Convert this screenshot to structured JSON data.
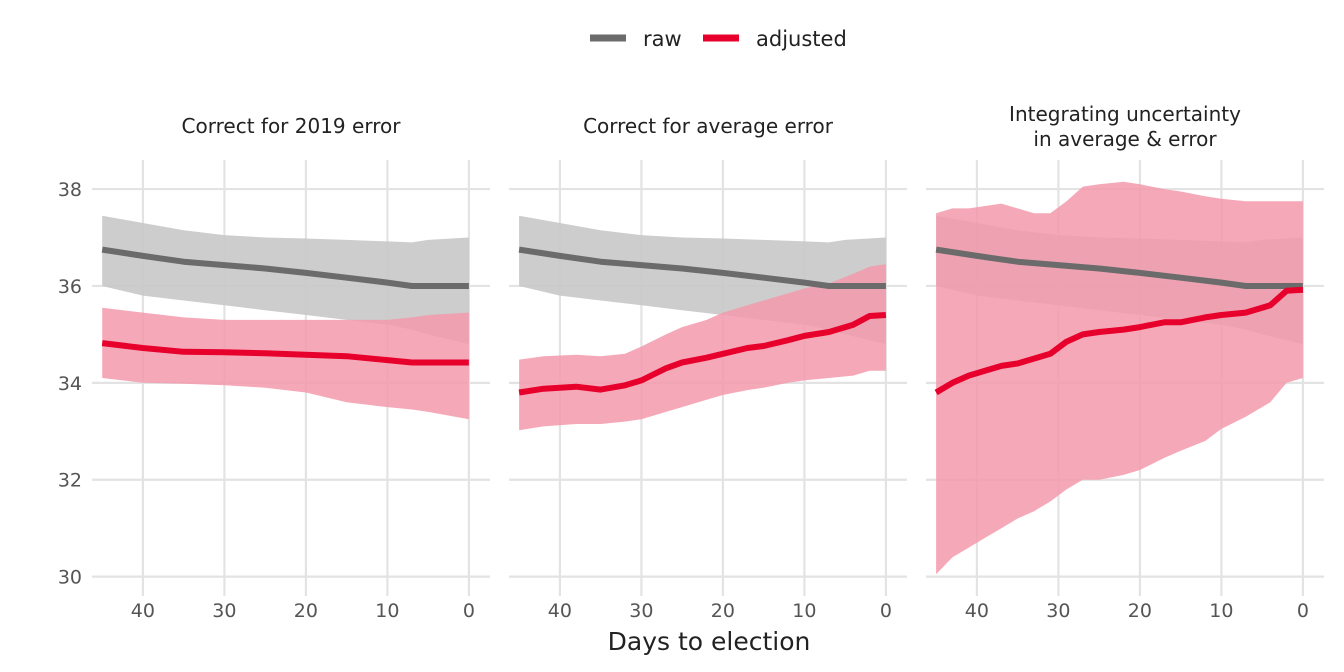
{
  "chart_data": {
    "type": "line",
    "xlabel": "Days to election",
    "ylabel": "",
    "xlim": [
      46,
      0
    ],
    "ylim": [
      29.6,
      38.6
    ],
    "x_reversed": true,
    "x_ticks": [
      40,
      30,
      20,
      10,
      0
    ],
    "y_ticks": [
      30,
      32,
      34,
      36,
      38
    ],
    "grid": true,
    "legend_position": "top-center",
    "colors": {
      "raw": "#6b6b6b",
      "adjusted": "#e8002d",
      "raw_band": "#c8c8c8",
      "adjusted_band": "#f39aac"
    },
    "legend": [
      {
        "key": "raw",
        "label": "raw"
      },
      {
        "key": "adjusted",
        "label": "adjusted"
      }
    ],
    "panels": [
      {
        "title": [
          "Correct for 2019 error"
        ],
        "series": [
          {
            "name": "raw",
            "x": [
              45,
              40,
              35,
              30,
              25,
              20,
              15,
              10,
              7,
              5,
              0
            ],
            "y": [
              36.75,
              36.62,
              36.5,
              36.43,
              36.36,
              36.27,
              36.17,
              36.07,
              36.0,
              36.0,
              36.0
            ],
            "lower": [
              36.0,
              35.8,
              35.7,
              35.6,
              35.5,
              35.4,
              35.3,
              35.2,
              35.1,
              35.0,
              34.8
            ],
            "upper": [
              37.45,
              37.3,
              37.15,
              37.05,
              37.0,
              36.98,
              36.95,
              36.92,
              36.9,
              36.95,
              37.0
            ]
          },
          {
            "name": "adjusted",
            "x": [
              45,
              40,
              35,
              30,
              25,
              20,
              15,
              10,
              7,
              5,
              0
            ],
            "y": [
              34.82,
              34.72,
              34.64,
              34.63,
              34.61,
              34.58,
              34.55,
              34.47,
              34.42,
              34.42,
              34.42
            ],
            "lower": [
              34.1,
              34.0,
              33.98,
              33.95,
              33.9,
              33.8,
              33.6,
              33.5,
              33.45,
              33.4,
              33.25
            ],
            "upper": [
              35.55,
              35.45,
              35.35,
              35.3,
              35.3,
              35.3,
              35.3,
              35.3,
              35.35,
              35.4,
              35.45
            ]
          }
        ]
      },
      {
        "title": [
          "Correct for average error"
        ],
        "series": [
          {
            "name": "raw",
            "x": [
              45,
              40,
              35,
              30,
              25,
              20,
              15,
              10,
              7,
              5,
              0
            ],
            "y": [
              36.75,
              36.62,
              36.5,
              36.43,
              36.36,
              36.27,
              36.17,
              36.07,
              36.0,
              36.0,
              36.0
            ],
            "lower": [
              36.0,
              35.8,
              35.7,
              35.6,
              35.5,
              35.4,
              35.3,
              35.2,
              35.1,
              35.0,
              34.8
            ],
            "upper": [
              37.45,
              37.3,
              37.15,
              37.05,
              37.0,
              36.98,
              36.95,
              36.92,
              36.9,
              36.95,
              37.0
            ]
          },
          {
            "name": "adjusted",
            "x": [
              45,
              42,
              38,
              35,
              32,
              30,
              27,
              25,
              22,
              20,
              17,
              15,
              12,
              10,
              7,
              4,
              2,
              0
            ],
            "y": [
              33.8,
              33.88,
              33.92,
              33.86,
              33.95,
              34.05,
              34.3,
              34.42,
              34.52,
              34.6,
              34.72,
              34.76,
              34.88,
              34.97,
              35.05,
              35.2,
              35.38,
              35.4
            ],
            "lower": [
              33.02,
              33.1,
              33.15,
              33.15,
              33.2,
              33.25,
              33.4,
              33.5,
              33.65,
              33.75,
              33.85,
              33.9,
              34.0,
              34.05,
              34.1,
              34.15,
              34.25,
              34.25
            ],
            "upper": [
              34.48,
              34.55,
              34.58,
              34.55,
              34.6,
              34.75,
              35.0,
              35.15,
              35.3,
              35.45,
              35.6,
              35.7,
              35.85,
              35.95,
              36.05,
              36.25,
              36.4,
              36.45
            ]
          }
        ]
      },
      {
        "title": [
          "Integrating uncertainty",
          "in average & error"
        ],
        "series": [
          {
            "name": "raw",
            "x": [
              45,
              40,
              35,
              30,
              25,
              20,
              15,
              10,
              7,
              5,
              0
            ],
            "y": [
              36.75,
              36.62,
              36.5,
              36.43,
              36.36,
              36.27,
              36.17,
              36.07,
              36.0,
              36.0,
              36.0
            ],
            "lower": [
              36.0,
              35.8,
              35.7,
              35.6,
              35.5,
              35.4,
              35.3,
              35.2,
              35.1,
              35.0,
              34.8
            ],
            "upper": [
              37.45,
              37.3,
              37.15,
              37.05,
              37.0,
              36.98,
              36.95,
              36.92,
              36.9,
              36.95,
              37.0
            ]
          },
          {
            "name": "adjusted",
            "x": [
              45,
              43,
              41,
              39,
              37,
              35,
              33,
              31,
              29,
              27,
              25,
              22,
              20,
              17,
              15,
              12,
              10,
              7,
              4,
              2,
              0
            ],
            "y": [
              33.8,
              34.0,
              34.15,
              34.25,
              34.35,
              34.4,
              34.5,
              34.6,
              34.85,
              35.0,
              35.05,
              35.1,
              35.15,
              35.25,
              35.25,
              35.35,
              35.4,
              35.45,
              35.6,
              35.9,
              35.92
            ],
            "lower": [
              30.05,
              30.4,
              30.6,
              30.8,
              31.0,
              31.2,
              31.35,
              31.55,
              31.8,
              32.0,
              32.0,
              32.1,
              32.2,
              32.45,
              32.6,
              32.8,
              33.05,
              33.3,
              33.6,
              34.0,
              34.1
            ],
            "upper": [
              37.5,
              37.6,
              37.6,
              37.65,
              37.7,
              37.6,
              37.5,
              37.5,
              37.75,
              38.05,
              38.1,
              38.15,
              38.1,
              38.0,
              37.95,
              37.85,
              37.8,
              37.75,
              37.75,
              37.75,
              37.75
            ]
          }
        ]
      }
    ]
  }
}
